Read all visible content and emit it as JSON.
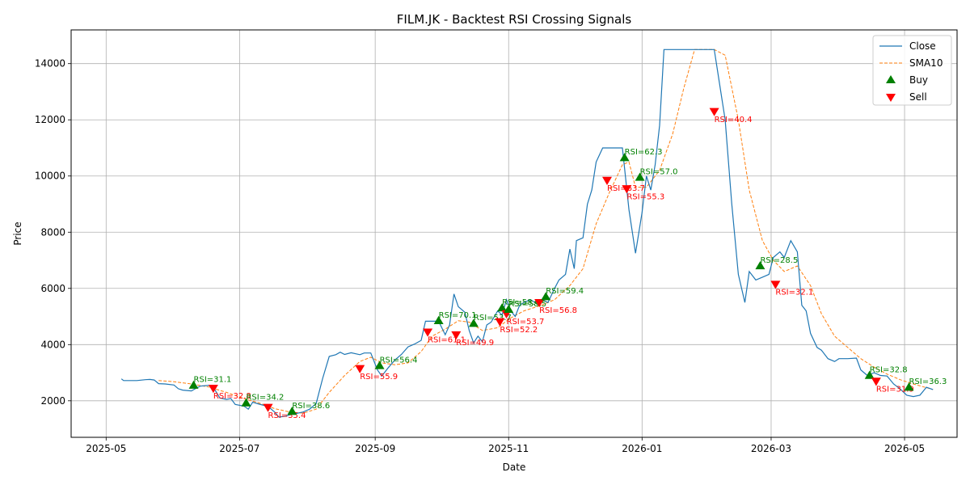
{
  "chart_data": {
    "type": "line",
    "title": "FILM.JK - Backtest RSI Crossing Signals",
    "xlabel": "Date",
    "ylabel": "Price",
    "xlim": [
      "2025-04-15",
      "2026-05-25"
    ],
    "ylim": [
      700,
      15200
    ],
    "grid": true,
    "legend_position": "top-right",
    "x_ticks": [
      "2025-05-01",
      "2025-07-01",
      "2025-09-01",
      "2025-11-01",
      "2026-01-01",
      "2026-03-01",
      "2026-05-01"
    ],
    "x_tick_labels": [
      "2025-05",
      "2025-07",
      "2025-09",
      "2025-11",
      "2026-01",
      "2026-03",
      "2026-05"
    ],
    "y_ticks": [
      2000,
      4000,
      6000,
      8000,
      10000,
      12000,
      14000
    ],
    "y_tick_labels": [
      "2000",
      "4000",
      "6000",
      "8000",
      "10000",
      "12000",
      "14000"
    ],
    "series": [
      {
        "name": "Close",
        "color": "#1f77b4",
        "style": "solid",
        "points": [
          [
            "2025-05-08",
            2780
          ],
          [
            "2025-05-09",
            2720
          ],
          [
            "2025-05-13",
            2720
          ],
          [
            "2025-05-15",
            2720
          ],
          [
            "2025-05-19",
            2750
          ],
          [
            "2025-05-21",
            2760
          ],
          [
            "2025-05-23",
            2740
          ],
          [
            "2025-05-25",
            2610
          ],
          [
            "2025-05-28",
            2600
          ],
          [
            "2025-06-01",
            2560
          ],
          [
            "2025-06-03",
            2430
          ],
          [
            "2025-06-05",
            2380
          ],
          [
            "2025-06-09",
            2350
          ],
          [
            "2025-06-11",
            2440
          ],
          [
            "2025-06-13",
            2520
          ],
          [
            "2025-06-17",
            2550
          ],
          [
            "2025-06-19",
            2480
          ],
          [
            "2025-06-22",
            2100
          ],
          [
            "2025-06-25",
            2050
          ],
          [
            "2025-06-27",
            2080
          ],
          [
            "2025-06-29",
            1870
          ],
          [
            "2025-07-03",
            1810
          ],
          [
            "2025-07-05",
            1700
          ],
          [
            "2025-07-07",
            1950
          ],
          [
            "2025-07-10",
            1880
          ],
          [
            "2025-07-14",
            1800
          ],
          [
            "2025-07-17",
            1600
          ],
          [
            "2025-07-19",
            1420
          ],
          [
            "2025-07-22",
            1450
          ],
          [
            "2025-07-24",
            1500
          ],
          [
            "2025-07-27",
            1550
          ],
          [
            "2025-07-30",
            1600
          ],
          [
            "2025-08-02",
            1700
          ],
          [
            "2025-08-05",
            1900
          ],
          [
            "2025-08-08",
            2800
          ],
          [
            "2025-08-11",
            3580
          ],
          [
            "2025-08-14",
            3640
          ],
          [
            "2025-08-16",
            3730
          ],
          [
            "2025-08-18",
            3650
          ],
          [
            "2025-08-21",
            3710
          ],
          [
            "2025-08-25",
            3640
          ],
          [
            "2025-08-27",
            3700
          ],
          [
            "2025-08-30",
            3700
          ],
          [
            "2025-09-02",
            3100
          ],
          [
            "2025-09-04",
            2880
          ],
          [
            "2025-09-07",
            3180
          ],
          [
            "2025-09-10",
            3450
          ],
          [
            "2025-09-13",
            3650
          ],
          [
            "2025-09-16",
            3920
          ],
          [
            "2025-09-19",
            4020
          ],
          [
            "2025-09-22",
            4150
          ],
          [
            "2025-09-24",
            4830
          ],
          [
            "2025-09-27",
            4830
          ],
          [
            "2025-09-30",
            4830
          ],
          [
            "2025-10-03",
            4350
          ],
          [
            "2025-10-05",
            4700
          ],
          [
            "2025-10-07",
            5800
          ],
          [
            "2025-10-09",
            5350
          ],
          [
            "2025-10-12",
            5150
          ],
          [
            "2025-10-14",
            4500
          ],
          [
            "2025-10-16",
            4060
          ],
          [
            "2025-10-18",
            4300
          ],
          [
            "2025-10-20",
            4100
          ],
          [
            "2025-10-22",
            4700
          ],
          [
            "2025-10-24",
            4800
          ],
          [
            "2025-10-27",
            5200
          ],
          [
            "2025-10-29",
            5050
          ],
          [
            "2025-10-31",
            5600
          ],
          [
            "2025-11-02",
            5200
          ],
          [
            "2025-11-04",
            5000
          ],
          [
            "2025-11-06",
            5400
          ],
          [
            "2025-11-08",
            5500
          ],
          [
            "2025-11-11",
            5600
          ],
          [
            "2025-11-13",
            5500
          ],
          [
            "2025-11-16",
            5600
          ],
          [
            "2025-11-19",
            5500
          ],
          [
            "2025-11-22",
            6000
          ],
          [
            "2025-11-24",
            6300
          ],
          [
            "2025-11-27",
            6500
          ],
          [
            "2025-11-29",
            7400
          ],
          [
            "2025-12-01",
            6700
          ],
          [
            "2025-12-02",
            7700
          ],
          [
            "2025-12-05",
            7800
          ],
          [
            "2025-12-07",
            9000
          ],
          [
            "2025-12-09",
            9500
          ],
          [
            "2025-12-11",
            10500
          ],
          [
            "2025-12-14",
            11000
          ],
          [
            "2025-12-17",
            11000
          ],
          [
            "2025-12-20",
            11000
          ],
          [
            "2025-12-23",
            11000
          ],
          [
            "2025-12-26",
            8800
          ],
          [
            "2025-12-29",
            7250
          ],
          [
            "2026-01-01",
            8700
          ],
          [
            "2026-01-03",
            10000
          ],
          [
            "2026-01-05",
            9500
          ],
          [
            "2026-01-07",
            10400
          ],
          [
            "2026-01-09",
            11800
          ],
          [
            "2026-01-11",
            14500
          ],
          [
            "2026-01-15",
            14500
          ],
          [
            "2026-01-20",
            14500
          ],
          [
            "2026-01-25",
            14500
          ],
          [
            "2026-01-30",
            14500
          ],
          [
            "2026-02-03",
            14500
          ],
          [
            "2026-02-06",
            13000
          ],
          [
            "2026-02-08",
            12000
          ],
          [
            "2026-02-11",
            9000
          ],
          [
            "2026-02-14",
            6500
          ],
          [
            "2026-02-17",
            5500
          ],
          [
            "2026-02-19",
            6600
          ],
          [
            "2026-02-22",
            6300
          ],
          [
            "2026-02-25",
            6400
          ],
          [
            "2026-02-28",
            6500
          ],
          [
            "2026-03-02",
            7100
          ],
          [
            "2026-03-05",
            7300
          ],
          [
            "2026-03-07",
            7100
          ],
          [
            "2026-03-10",
            7700
          ],
          [
            "2026-03-13",
            7300
          ],
          [
            "2026-03-15",
            5400
          ],
          [
            "2026-03-17",
            5200
          ],
          [
            "2026-03-19",
            4400
          ],
          [
            "2026-03-22",
            3900
          ],
          [
            "2026-03-24",
            3800
          ],
          [
            "2026-03-27",
            3500
          ],
          [
            "2026-03-30",
            3400
          ],
          [
            "2026-04-01",
            3500
          ],
          [
            "2026-04-05",
            3500
          ],
          [
            "2026-04-09",
            3520
          ],
          [
            "2026-04-11",
            3100
          ],
          [
            "2026-04-14",
            2900
          ],
          [
            "2026-04-17",
            3000
          ],
          [
            "2026-04-20",
            2900
          ],
          [
            "2026-04-23",
            2880
          ],
          [
            "2026-04-26",
            2600
          ],
          [
            "2026-04-29",
            2420
          ],
          [
            "2026-05-02",
            2200
          ],
          [
            "2026-05-05",
            2150
          ],
          [
            "2026-05-08",
            2200
          ],
          [
            "2026-05-11",
            2480
          ],
          [
            "2026-05-14",
            2400
          ]
        ]
      },
      {
        "name": "SMA10",
        "color": "#ff7f0e",
        "style": "dashed",
        "points": [
          [
            "2025-05-25",
            2720
          ],
          [
            "2025-06-01",
            2680
          ],
          [
            "2025-06-09",
            2600
          ],
          [
            "2025-06-17",
            2490
          ],
          [
            "2025-06-25",
            2300
          ],
          [
            "2025-07-03",
            2080
          ],
          [
            "2025-07-10",
            1920
          ],
          [
            "2025-07-17",
            1720
          ],
          [
            "2025-07-24",
            1600
          ],
          [
            "2025-07-30",
            1560
          ],
          [
            "2025-08-05",
            1700
          ],
          [
            "2025-08-11",
            2300
          ],
          [
            "2025-08-18",
            2900
          ],
          [
            "2025-08-25",
            3400
          ],
          [
            "2025-08-30",
            3550
          ],
          [
            "2025-09-04",
            3350
          ],
          [
            "2025-09-10",
            3280
          ],
          [
            "2025-09-16",
            3350
          ],
          [
            "2025-09-22",
            3750
          ],
          [
            "2025-09-27",
            4300
          ],
          [
            "2025-10-03",
            4550
          ],
          [
            "2025-10-09",
            4850
          ],
          [
            "2025-10-14",
            4800
          ],
          [
            "2025-10-20",
            4500
          ],
          [
            "2025-10-27",
            4600
          ],
          [
            "2025-11-02",
            4950
          ],
          [
            "2025-11-08",
            5200
          ],
          [
            "2025-11-16",
            5400
          ],
          [
            "2025-11-22",
            5600
          ],
          [
            "2025-11-29",
            6100
          ],
          [
            "2025-12-05",
            6700
          ],
          [
            "2025-12-11",
            8300
          ],
          [
            "2025-12-17",
            9400
          ],
          [
            "2025-12-23",
            10400
          ],
          [
            "2025-12-26",
            10500
          ],
          [
            "2025-12-29",
            9600
          ],
          [
            "2026-01-03",
            9600
          ],
          [
            "2026-01-09",
            10200
          ],
          [
            "2026-01-15",
            11500
          ],
          [
            "2026-01-20",
            13100
          ],
          [
            "2026-01-25",
            14500
          ],
          [
            "2026-02-03",
            14500
          ],
          [
            "2026-02-08",
            14300
          ],
          [
            "2026-02-14",
            12000
          ],
          [
            "2026-02-19",
            9500
          ],
          [
            "2026-02-25",
            7700
          ],
          [
            "2026-03-02",
            7000
          ],
          [
            "2026-03-07",
            6600
          ],
          [
            "2026-03-13",
            6800
          ],
          [
            "2026-03-19",
            6100
          ],
          [
            "2026-03-24",
            5100
          ],
          [
            "2026-03-30",
            4300
          ],
          [
            "2026-04-05",
            3900
          ],
          [
            "2026-04-11",
            3500
          ],
          [
            "2026-04-17",
            3200
          ],
          [
            "2026-04-23",
            2950
          ],
          [
            "2026-04-29",
            2750
          ],
          [
            "2026-05-05",
            2600
          ],
          [
            "2026-05-14",
            2400
          ]
        ]
      }
    ],
    "signals": [
      {
        "type": "buy",
        "date": "2025-06-10",
        "price": 2550,
        "label": "RSI=31.1"
      },
      {
        "type": "sell",
        "date": "2025-06-19",
        "price": 2450,
        "label": "RSI=32.8"
      },
      {
        "type": "buy",
        "date": "2025-07-04",
        "price": 1920,
        "label": "RSI=34.2"
      },
      {
        "type": "sell",
        "date": "2025-07-14",
        "price": 1770,
        "label": "RSI=35.4"
      },
      {
        "type": "buy",
        "date": "2025-07-25",
        "price": 1620,
        "label": "RSI=38.6"
      },
      {
        "type": "sell",
        "date": "2025-08-25",
        "price": 3150,
        "label": "RSI=55.9"
      },
      {
        "type": "buy",
        "date": "2025-09-03",
        "price": 3250,
        "label": "RSI=56.4"
      },
      {
        "type": "sell",
        "date": "2025-09-25",
        "price": 4450,
        "label": "RSI=61.1"
      },
      {
        "type": "buy",
        "date": "2025-09-30",
        "price": 4850,
        "label": "RSI=70.1"
      },
      {
        "type": "sell",
        "date": "2025-10-08",
        "price": 4350,
        "label": "RSI=49.9"
      },
      {
        "type": "buy",
        "date": "2025-10-16",
        "price": 4750,
        "label": "RSI=53.7"
      },
      {
        "type": "sell",
        "date": "2025-10-28",
        "price": 4820,
        "label": "RSI=52.2"
      },
      {
        "type": "buy",
        "date": "2025-10-29",
        "price": 5300,
        "label": "RSI=58.6"
      },
      {
        "type": "sell",
        "date": "2025-10-31",
        "price": 5100,
        "label": "RSI=53.7"
      },
      {
        "type": "buy",
        "date": "2025-11-01",
        "price": 5250,
        "label": "RSI=58.5"
      },
      {
        "type": "sell",
        "date": "2025-11-15",
        "price": 5500,
        "label": "RSI=56.8"
      },
      {
        "type": "buy",
        "date": "2025-11-18",
        "price": 5700,
        "label": "RSI=59.4"
      },
      {
        "type": "sell",
        "date": "2025-12-16",
        "price": 9850,
        "label": "RSI=63.7"
      },
      {
        "type": "buy",
        "date": "2025-12-24",
        "price": 10650,
        "label": "RSI=62.3"
      },
      {
        "type": "sell",
        "date": "2025-12-25",
        "price": 9550,
        "label": "RSI=55.3"
      },
      {
        "type": "buy",
        "date": "2025-12-31",
        "price": 9950,
        "label": "RSI=57.0"
      },
      {
        "type": "sell",
        "date": "2026-02-03",
        "price": 12300,
        "label": "RSI=40.4"
      },
      {
        "type": "buy",
        "date": "2026-02-24",
        "price": 6800,
        "label": "RSI=28.5"
      },
      {
        "type": "sell",
        "date": "2026-03-03",
        "price": 6150,
        "label": "RSI=32.1"
      },
      {
        "type": "buy",
        "date": "2026-04-15",
        "price": 2900,
        "label": "RSI=32.8"
      },
      {
        "type": "sell",
        "date": "2026-04-18",
        "price": 2700,
        "label": "RSI=31.9"
      },
      {
        "type": "buy",
        "date": "2026-05-03",
        "price": 2480,
        "label": "RSI=36.3"
      }
    ],
    "legend": [
      {
        "label": "Close",
        "kind": "line",
        "color": "#1f77b4"
      },
      {
        "label": "SMA10",
        "kind": "dashed",
        "color": "#ff7f0e"
      },
      {
        "label": "Buy",
        "kind": "buy",
        "color": "#008000"
      },
      {
        "label": "Sell",
        "kind": "sell",
        "color": "#ff0000"
      }
    ]
  }
}
